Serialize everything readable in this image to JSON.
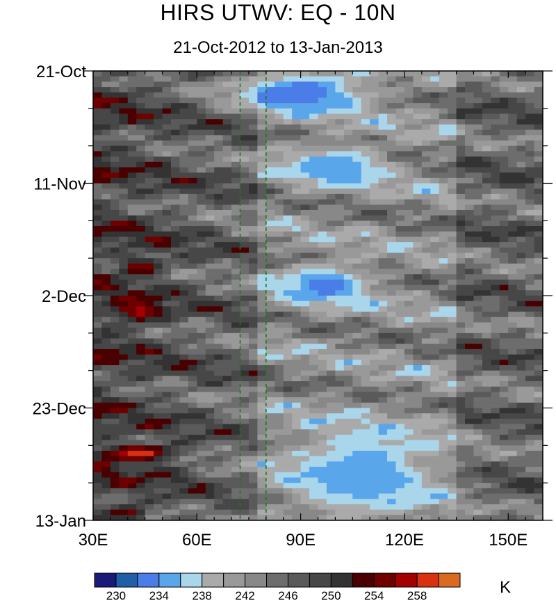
{
  "chart_data": {
    "type": "heatmap",
    "title": "HIRS UTWV: EQ - 10N",
    "subtitle": "21-Oct-2012 to 13-Jan-2013",
    "xlabel": "",
    "ylabel": "",
    "x_ticks": [
      {
        "value": 30,
        "label": "30E"
      },
      {
        "value": 60,
        "label": "60E"
      },
      {
        "value": 90,
        "label": "90E"
      },
      {
        "value": 120,
        "label": "120E"
      },
      {
        "value": 150,
        "label": "150E"
      }
    ],
    "xlim": [
      30,
      160
    ],
    "y_ticks": [
      {
        "value": 0,
        "label": "21-Oct"
      },
      {
        "value": 21,
        "label": "11-Nov"
      },
      {
        "value": 42,
        "label": "2-Dec"
      },
      {
        "value": 63,
        "label": "23-Dec"
      },
      {
        "value": 84,
        "label": "13-Jan"
      }
    ],
    "ylim_days": [
      0,
      84
    ],
    "reference_lines": [
      {
        "x": 72.5,
        "style": "dashed",
        "color": "#1a7a1a"
      },
      {
        "x": 80,
        "style": "dashed",
        "color": "#1a7a1a"
      }
    ],
    "colorbar": {
      "unit": "K",
      "levels": [
        228,
        230,
        232,
        234,
        236,
        238,
        240,
        242,
        244,
        246,
        248,
        250,
        252,
        254,
        256,
        258,
        260
      ],
      "labeled_levels": [
        230,
        234,
        238,
        242,
        246,
        250,
        254,
        258
      ],
      "colors": [
        "#1a1a7a",
        "#1f5fa8",
        "#4a7de8",
        "#5aa6ea",
        "#a9d6ea",
        "#aaaaaa",
        "#999999",
        "#888888",
        "#6d6d6d",
        "#5a5a5a",
        "#474747",
        "#333333",
        "#4a0000",
        "#6e0000",
        "#a30000",
        "#d93010",
        "#d96a20"
      ]
    },
    "field_features": [
      {
        "desc": "moist band",
        "day": [
          0,
          8
        ],
        "lon": [
          70,
          110
        ],
        "value": 232
      },
      {
        "desc": "moist band",
        "day": [
          14,
          22
        ],
        "lon": [
          85,
          115
        ],
        "value": 234
      },
      {
        "desc": "moist band",
        "day": [
          36,
          44
        ],
        "lon": [
          84,
          110
        ],
        "value": 233
      },
      {
        "desc": "moist band",
        "day": [
          66,
          84
        ],
        "lon": [
          85,
          130
        ],
        "value": 234
      },
      {
        "desc": "dry max",
        "day": [
          35,
          38
        ],
        "lon": [
          38,
          50
        ],
        "value": 256
      },
      {
        "desc": "dry max",
        "day": [
          43,
          47
        ],
        "lon": [
          36,
          50
        ],
        "value": 257
      },
      {
        "desc": "dry max",
        "day": [
          70,
          73
        ],
        "lon": [
          32,
          54
        ],
        "value": 259
      },
      {
        "desc": "dry max",
        "day": [
          81,
          84
        ],
        "lon": [
          36,
          45
        ],
        "value": 255
      }
    ]
  }
}
